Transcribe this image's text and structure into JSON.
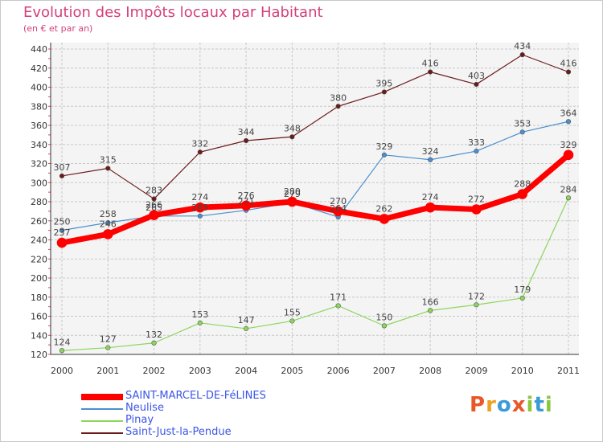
{
  "title": "Evolution des Impôts locaux par Habitant",
  "subtitle": "(en € et par an)",
  "logo": {
    "text": "Proxiti",
    "letters": [
      {
        "ch": "P",
        "color": "#e8572a"
      },
      {
        "ch": "r",
        "color": "#f0a020"
      },
      {
        "ch": "o",
        "color": "#3c9ad8"
      },
      {
        "ch": "x",
        "color": "#e8572a"
      },
      {
        "ch": "i",
        "color": "#8cc63f"
      },
      {
        "ch": "t",
        "color": "#3c9ad8"
      },
      {
        "ch": "i",
        "color": "#8cc63f"
      }
    ]
  },
  "chart_data": {
    "type": "line",
    "x": [
      "2000",
      "2001",
      "2002",
      "2003",
      "2004",
      "2005",
      "2006",
      "2007",
      "2008",
      "2009",
      "2010",
      "2011"
    ],
    "ylim": [
      120,
      440
    ],
    "yticks": [
      120,
      140,
      160,
      180,
      200,
      220,
      240,
      260,
      280,
      300,
      320,
      340,
      360,
      380,
      400,
      420,
      440
    ],
    "grid": true,
    "legend_position": "bottom-left",
    "series": [
      {
        "name": "Saint-Just-la-Pendue",
        "color": "#6b1a1a",
        "width": 1.2,
        "marker": 2.8,
        "values": [
          307,
          315,
          283,
          332,
          344,
          348,
          380,
          395,
          416,
          403,
          434,
          416
        ]
      },
      {
        "name": "Pinay",
        "color": "#8cd65c",
        "width": 1.2,
        "marker": 2.8,
        "values": [
          124,
          127,
          132,
          153,
          147,
          155,
          171,
          150,
          166,
          172,
          179,
          284
        ]
      },
      {
        "name": "Neulise",
        "color": "#4a8fcf",
        "width": 1.2,
        "marker": 2.8,
        "values": [
          250,
          258,
          265,
          265,
          271,
          279,
          264,
          329,
          324,
          333,
          353,
          364
        ]
      },
      {
        "name": "SAINT-MARCEL-DE-FéLINES",
        "color": "#ff0000",
        "width": 7,
        "marker": 6,
        "values": [
          237,
          246,
          266,
          274,
          276,
          280,
          270,
          262,
          274,
          272,
          288,
          329
        ]
      }
    ],
    "data_labels": [
      {
        "series": "Saint-Just-la-Pendue",
        "labels": [
          "307",
          "315",
          "283",
          "332",
          "344",
          "348",
          "380",
          "395",
          "416",
          "403",
          "434",
          "416"
        ]
      },
      {
        "series": "Pinay",
        "labels": [
          "124",
          "127",
          "132",
          "153",
          "147",
          "155",
          "171",
          "150",
          "166",
          "172",
          "179",
          "284"
        ]
      },
      {
        "series": "Neulise",
        "labels": [
          "250",
          "258",
          "265",
          "265",
          "271",
          "279",
          "264",
          "329",
          "324",
          "333",
          "353",
          "364"
        ]
      },
      {
        "series": "SAINT-MARCEL-DE-FéLINES",
        "labels": [
          "237",
          "246",
          "266",
          "274",
          "276",
          "280",
          "270",
          "262",
          "274",
          "272",
          "288",
          "329"
        ]
      }
    ],
    "legend": [
      {
        "label": "SAINT-MARCEL-DE-FéLINES",
        "color": "#ff0000",
        "thickness": 8
      },
      {
        "label": "Neulise",
        "color": "#4a8fcf",
        "thickness": 2
      },
      {
        "label": "Pinay",
        "color": "#8cd65c",
        "thickness": 2
      },
      {
        "label": "Saint-Just-la-Pendue",
        "color": "#6b1a1a",
        "thickness": 2
      }
    ]
  }
}
